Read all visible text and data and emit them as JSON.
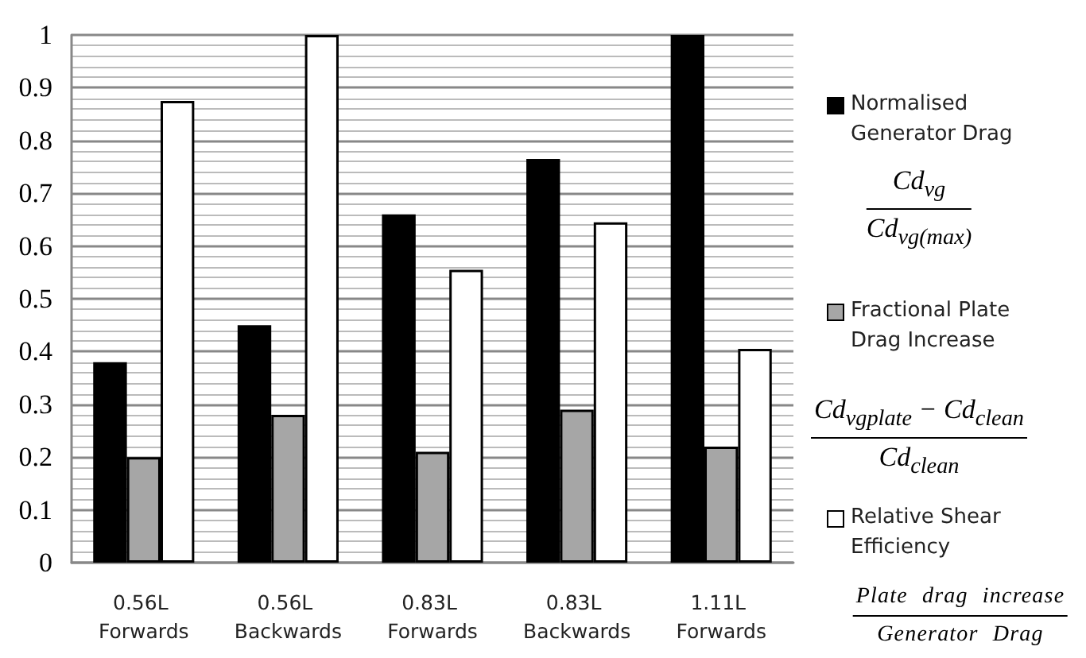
{
  "chart_data": {
    "type": "bar",
    "categories": [
      "0.56L Forwards",
      "0.56L Backwards",
      "0.83L Forwards",
      "0.83L Backwards",
      "1.11L Forwards"
    ],
    "series": [
      {
        "name": "Normalised Generator Drag",
        "color": "#000000",
        "values": [
          0.38,
          0.45,
          0.66,
          0.765,
          1.0
        ]
      },
      {
        "name": "Fractional Plate Drag Increase",
        "color": "#a6a6a6",
        "values": [
          0.2,
          0.28,
          0.21,
          0.29,
          0.22
        ]
      },
      {
        "name": "Relative Shear Efficiency",
        "color": "#ffffff",
        "values": [
          0.875,
          1.0,
          0.555,
          0.645,
          0.405
        ]
      }
    ],
    "ylim": [
      0,
      1
    ],
    "yticks": [
      0,
      0.1,
      0.2,
      0.3,
      0.4,
      0.5,
      0.6,
      0.7,
      0.8,
      0.9,
      1
    ],
    "grid": true,
    "legend": "right",
    "annotations": [
      "Cd$_{vg}$",
      "Cd$_{vg(max)}$",
      "Cd$_{vgplate}$ − Cd$_{clean}$",
      "Cd$_{clean}$",
      "Plate drag increase",
      "Generator Drag"
    ]
  }
}
